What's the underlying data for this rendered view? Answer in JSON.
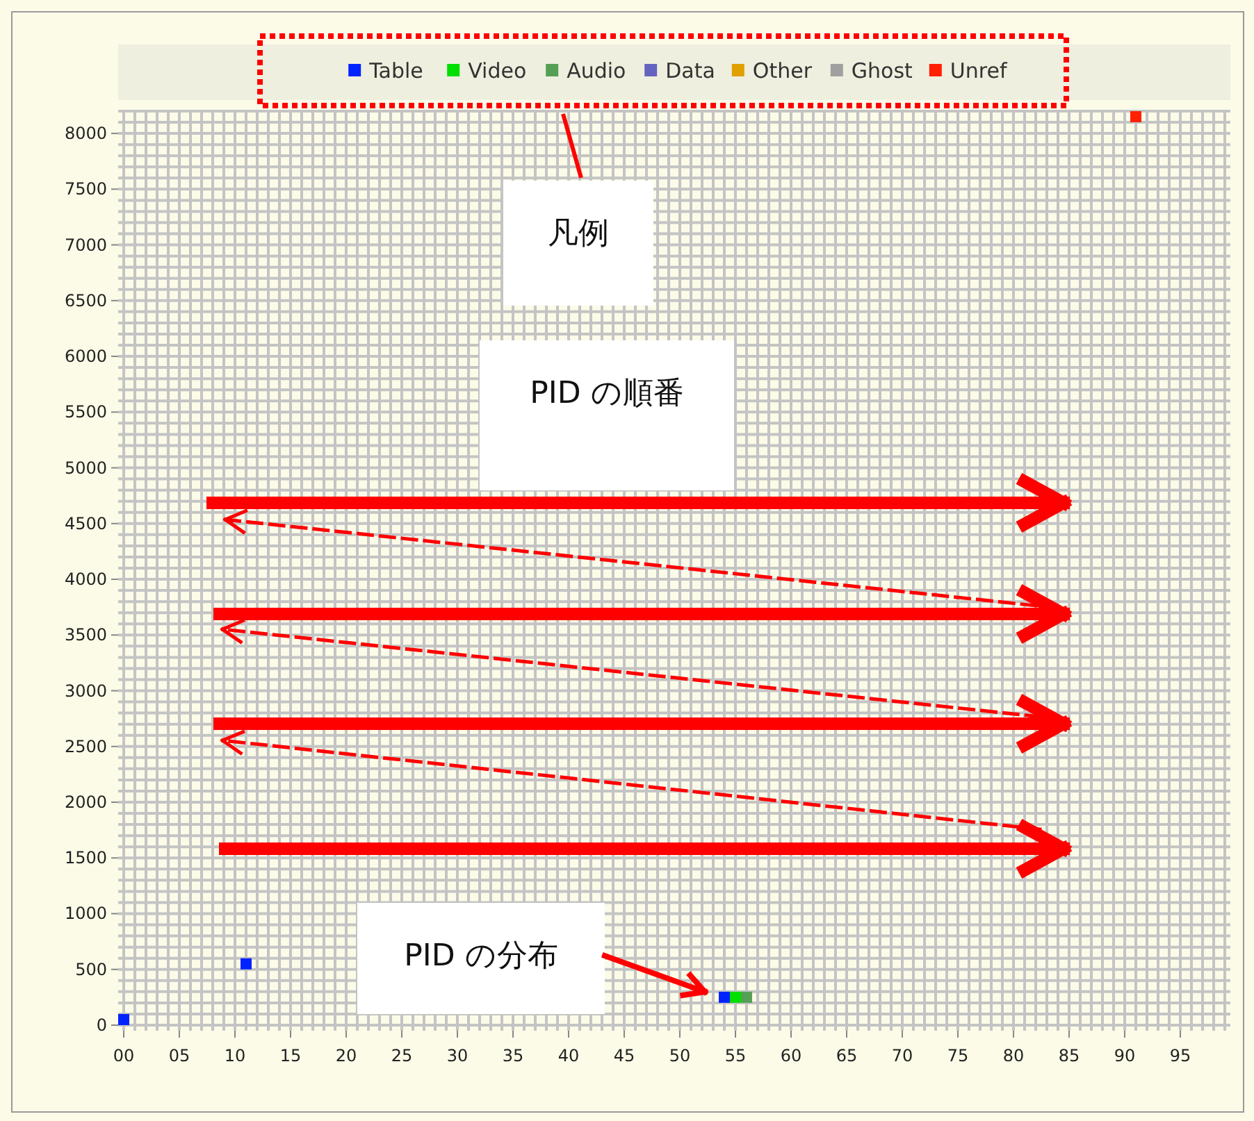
{
  "chart_data": {
    "type": "scatter",
    "marker": "square",
    "legend": "top",
    "grid": true,
    "xlim": [
      -0.5,
      99.5
    ],
    "ylim": [
      -50,
      8200
    ],
    "xticks": [
      {
        "value": 0,
        "label": "00"
      },
      {
        "value": 5,
        "label": "05"
      },
      10,
      15,
      20,
      25,
      30,
      35,
      40,
      45,
      50,
      55,
      60,
      65,
      70,
      75,
      80,
      85,
      90,
      95
    ],
    "yticks": [
      0,
      500,
      1000,
      1500,
      2000,
      2500,
      3000,
      3500,
      4000,
      4500,
      5000,
      5500,
      6000,
      6500,
      7000,
      7500,
      8000
    ],
    "series": [
      {
        "name": "Table",
        "color": "#0022ff",
        "x": [
          0,
          11,
          54
        ],
        "values": [
          50,
          550,
          250
        ]
      },
      {
        "name": "Video",
        "color": "#00e000",
        "x": [
          55
        ],
        "values": [
          250
        ]
      },
      {
        "name": "Audio",
        "color": "#55a055",
        "x": [
          56
        ],
        "values": [
          250
        ]
      },
      {
        "name": "Data",
        "color": "#6464c0"
      },
      {
        "name": "Other",
        "color": "#e0a000"
      },
      {
        "name": "Ghost",
        "color": "#a0a0a0"
      },
      {
        "name": "Unref",
        "color": "#ff2000",
        "x": [
          91
        ],
        "values": [
          8150
        ]
      }
    ],
    "annotations": [
      "凡例",
      "PID の順番",
      "PID の分布"
    ]
  }
}
